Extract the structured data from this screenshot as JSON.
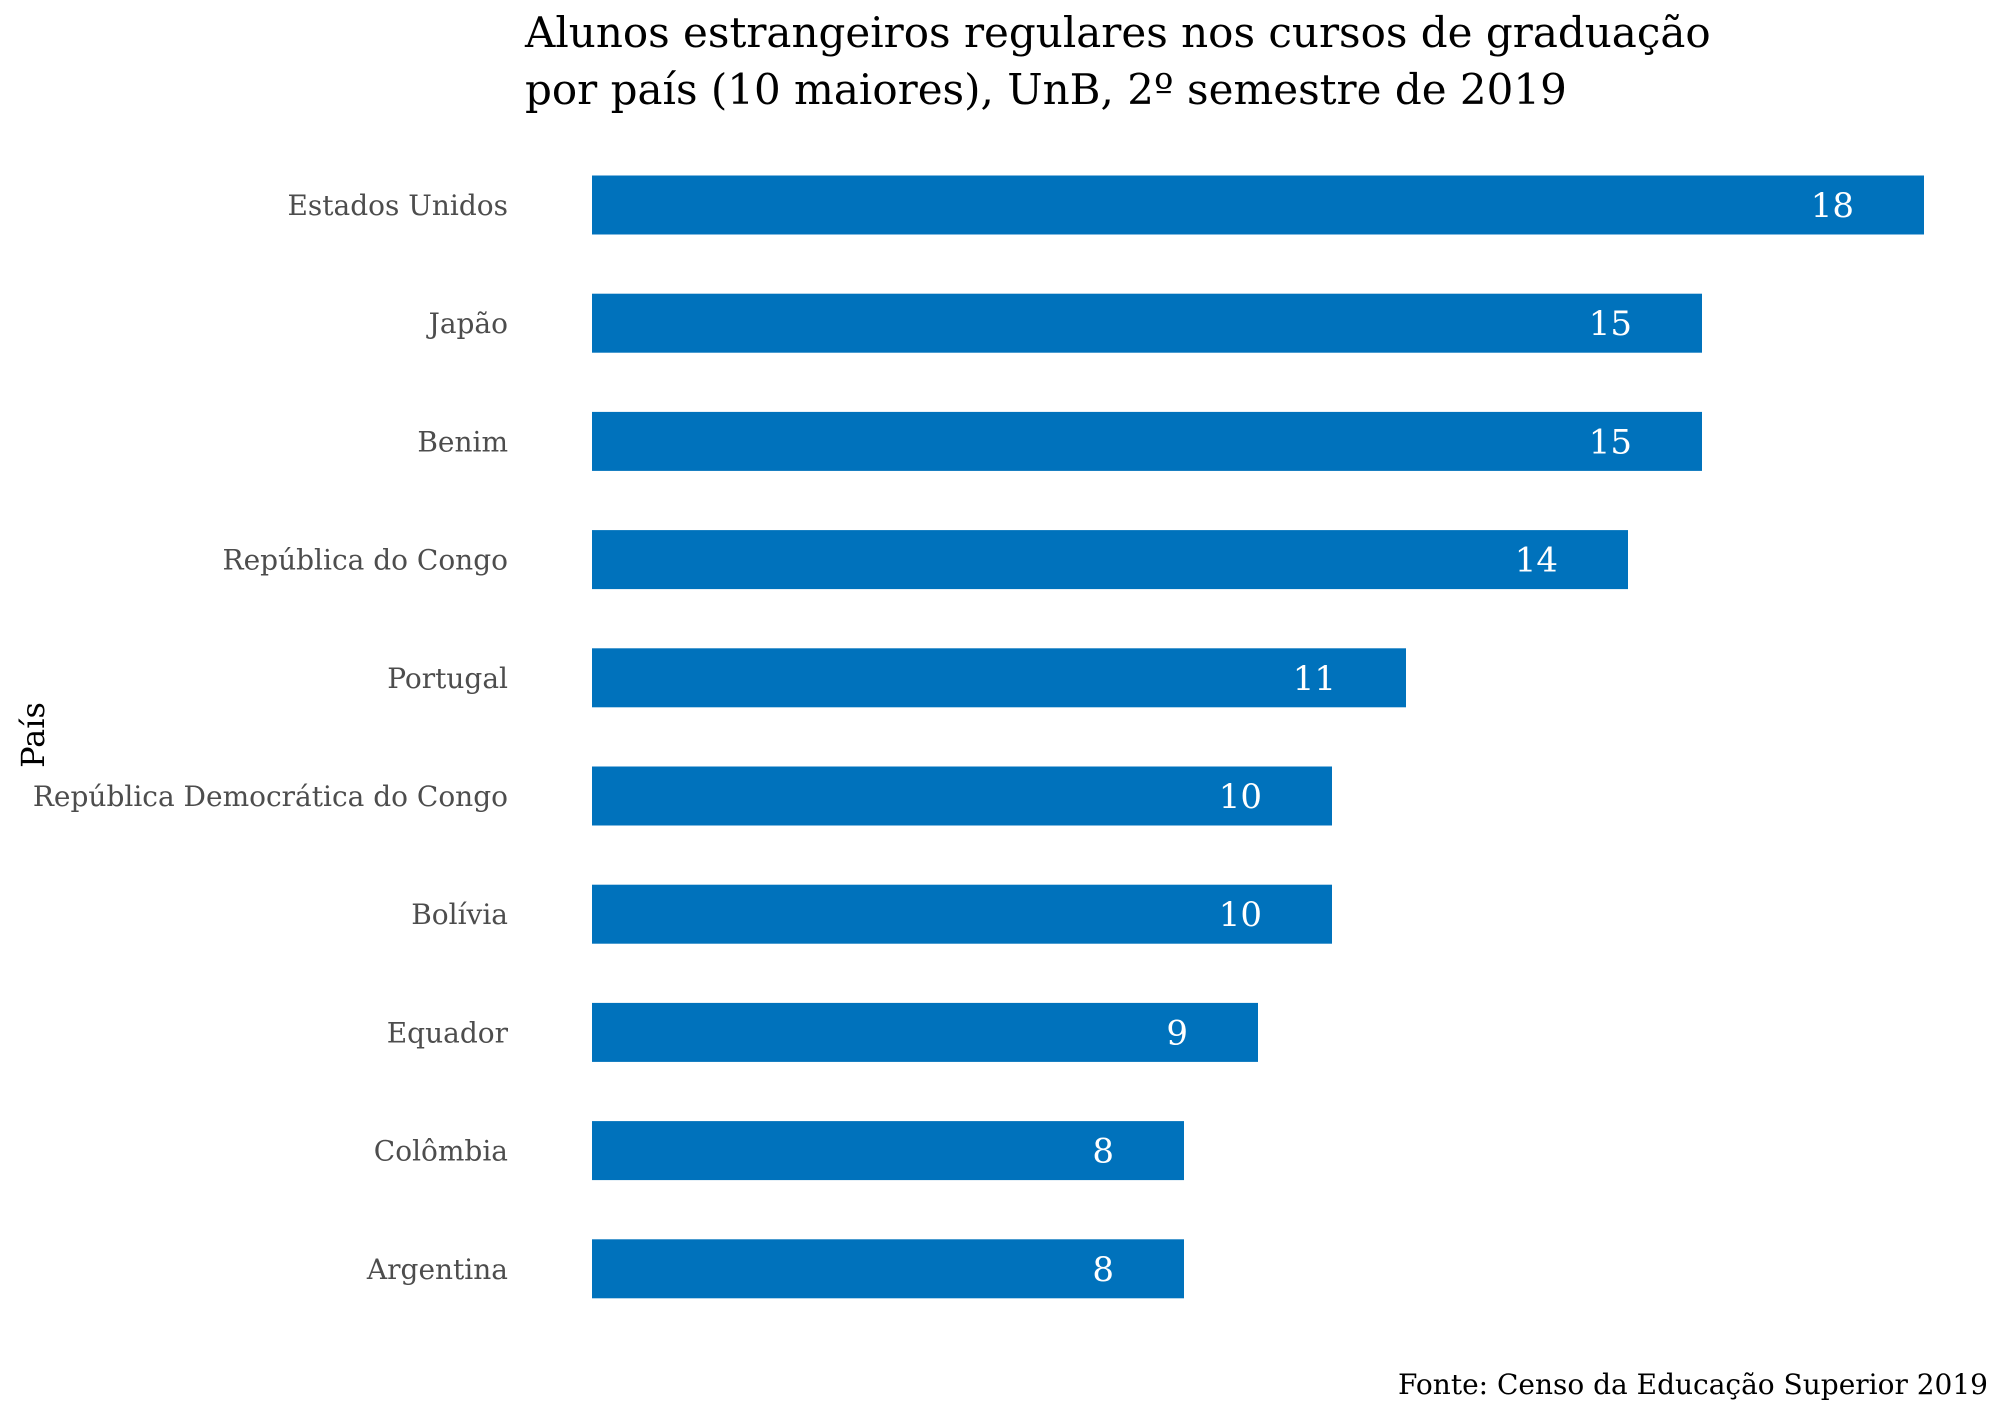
{
  "chart_data": {
    "type": "bar",
    "orientation": "horizontal",
    "title_lines": [
      "Alunos estrangeiros regulares nos cursos de graduação",
      "por país (10 maiores), UnB, 2º semestre de 2019"
    ],
    "ylabel": "País",
    "xlabel": "",
    "caption": "Fonte: Censo da Educação Superior 2019",
    "categories": [
      "Estados Unidos",
      "Japão",
      "Benim",
      "República do Congo",
      "Portugal",
      "República Democrática do Congo",
      "Bolívia",
      "Equador",
      "Colômbia",
      "Argentina"
    ],
    "values": [
      18,
      15,
      15,
      14,
      11,
      10,
      10,
      9,
      8,
      8
    ],
    "value_labels": [
      "18",
      "15",
      "15",
      "14",
      "11",
      "10",
      "10",
      "9",
      "8",
      "8"
    ],
    "xlim": [
      0,
      18
    ],
    "grid": false,
    "legend": "none",
    "bar_color": "#0072BC",
    "label_color": "#FFFFFF"
  }
}
